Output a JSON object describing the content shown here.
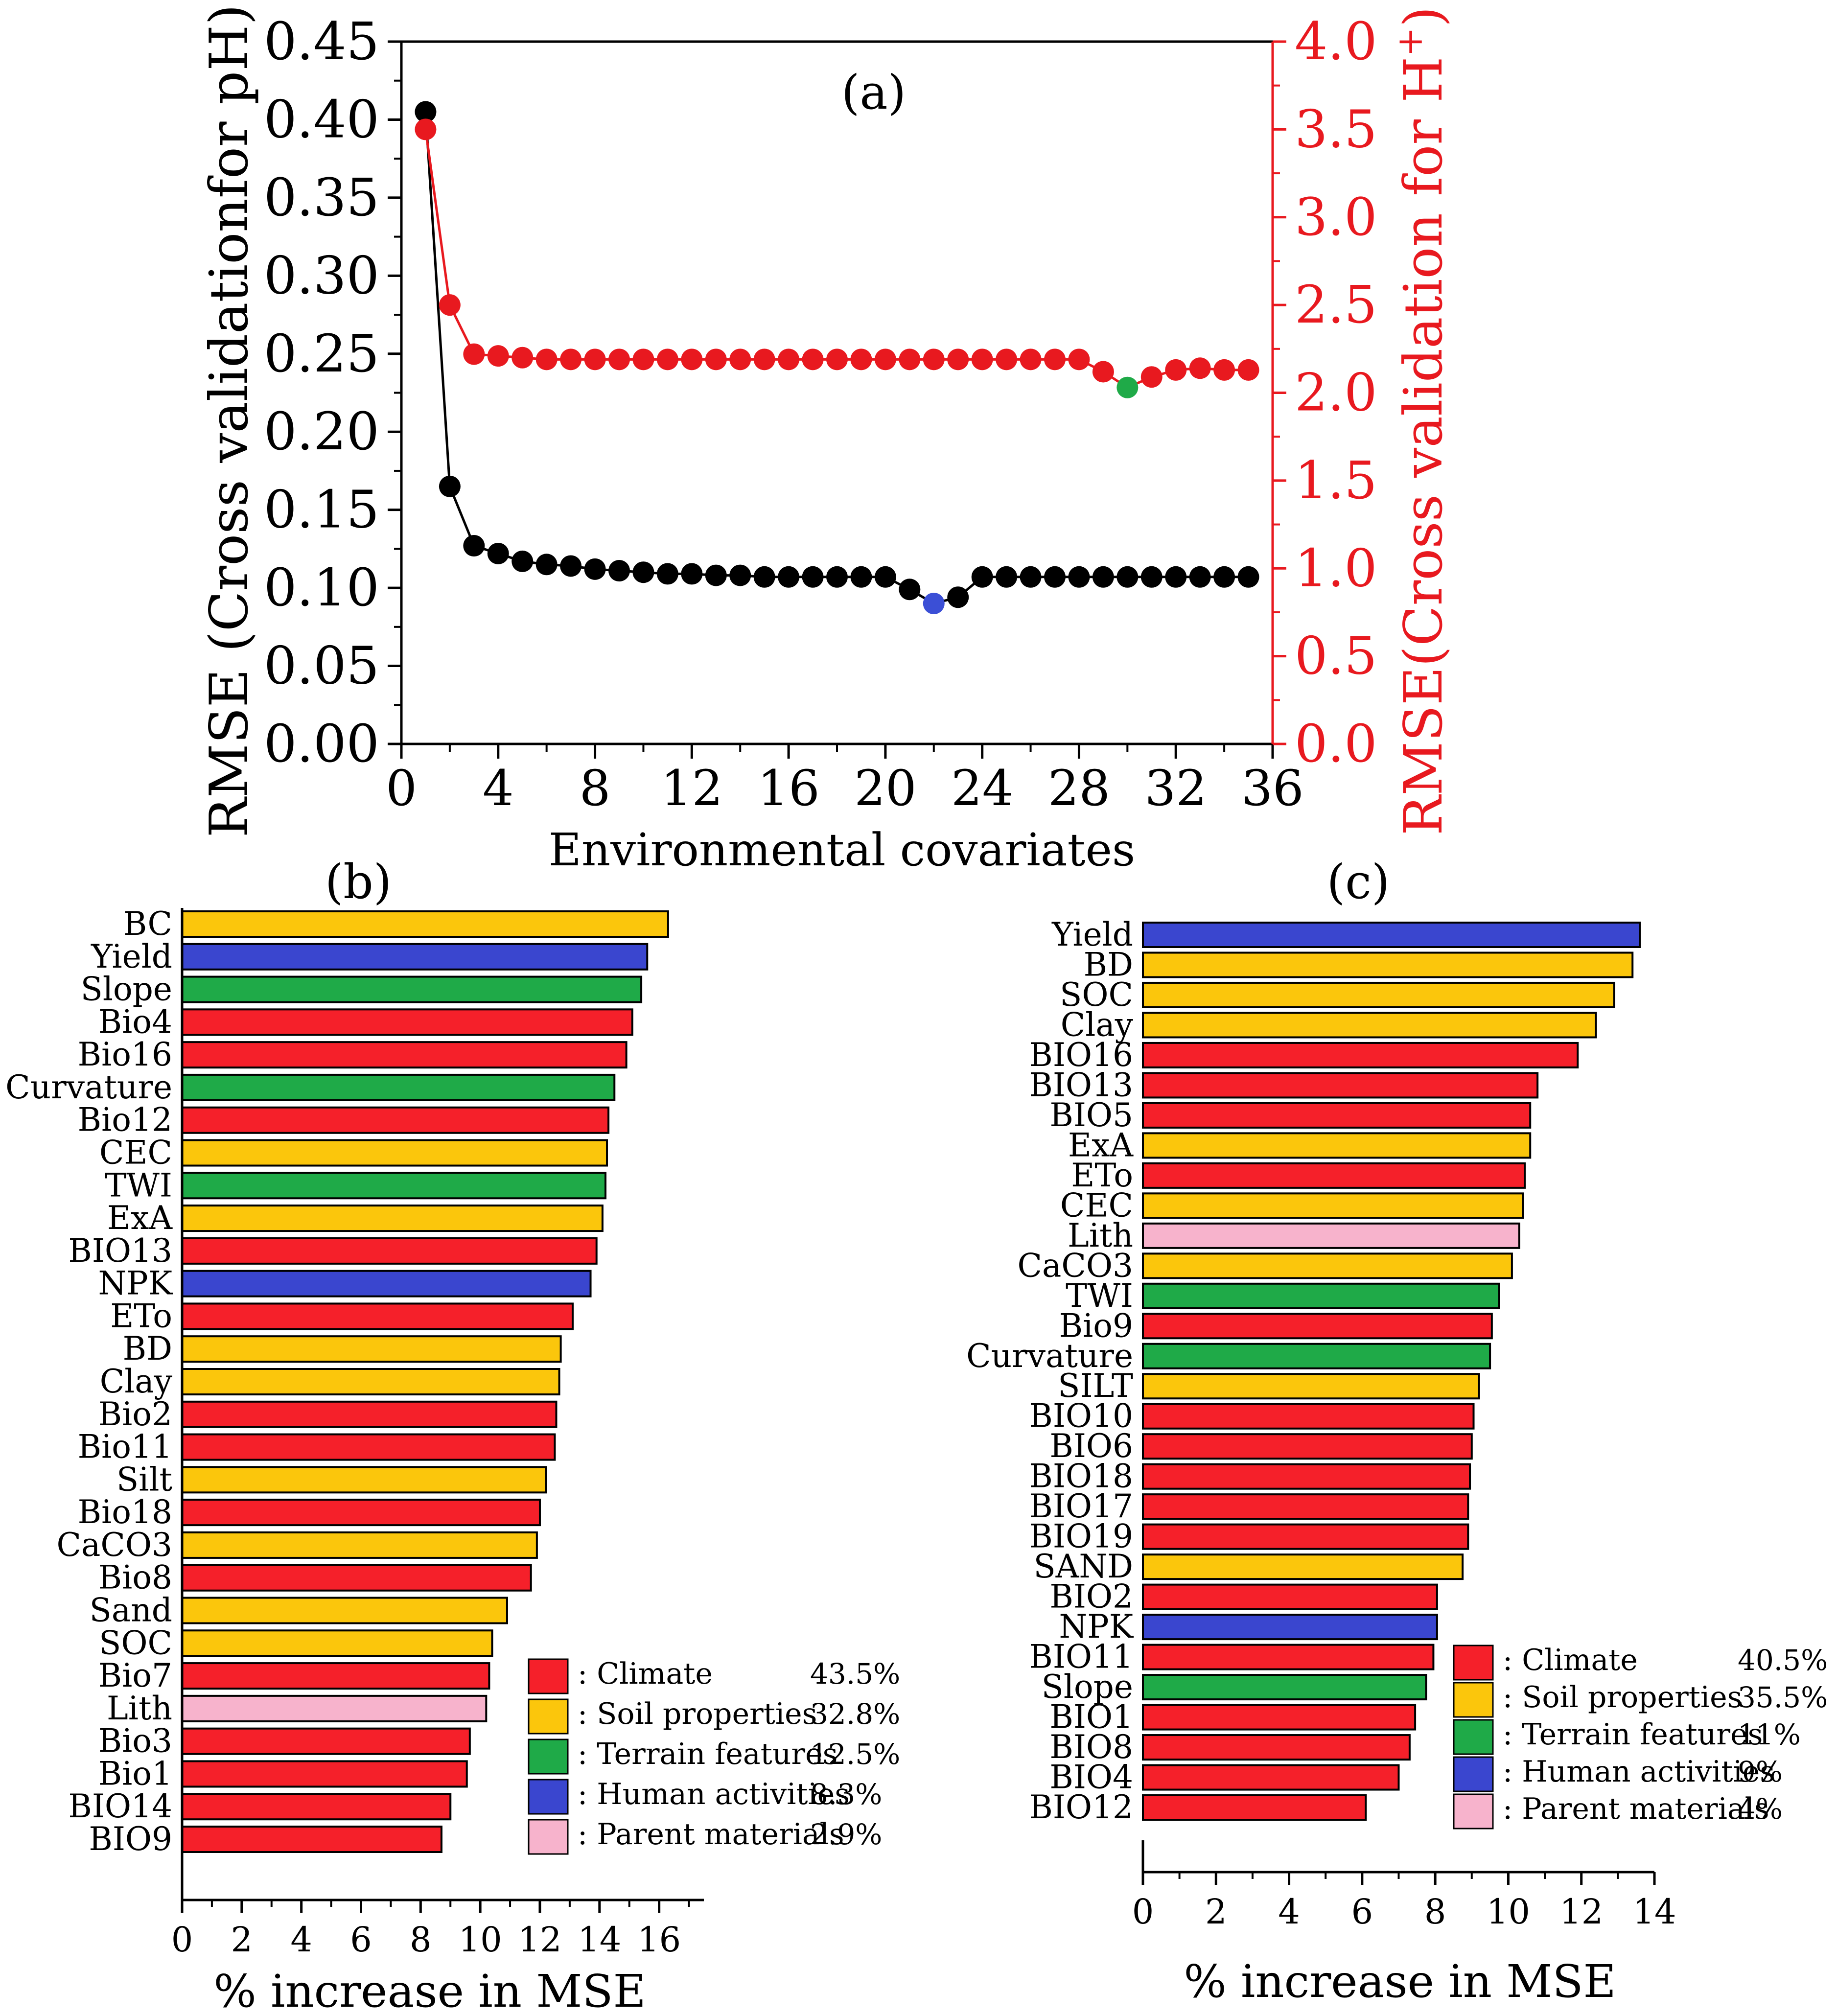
{
  "chart_data": [
    {
      "type": "scatter",
      "panel_label": "(a)",
      "xlabel": "Environmental covariates",
      "xlim": [
        0,
        36
      ],
      "x_ticks": [
        0,
        4,
        8,
        12,
        16,
        20,
        24,
        28,
        32,
        36
      ],
      "x_tick_labels": [
        "0",
        "4",
        "8",
        "12",
        "16",
        "20",
        "24",
        "28",
        "32",
        "36"
      ],
      "ylabel_left": "RMSE (Cross validationfor pH)",
      "ylim_left": [
        0,
        0.45
      ],
      "y_ticks_left": [
        0,
        0.05,
        0.1,
        0.15,
        0.2,
        0.25,
        0.3,
        0.35,
        0.4,
        0.45
      ],
      "y_tick_labels_left": [
        "0.00",
        "0.05",
        "0.10",
        "0.15",
        "0.20",
        "0.25",
        "0.30",
        "0.35",
        "0.40",
        "0.45"
      ],
      "ylabel_right_main": "RMSE(Cross validation for H",
      "ylabel_right_sup": "+",
      "ylabel_right_close": ")",
      "ylim_right": [
        0,
        4.0
      ],
      "y_ticks_right": [
        0,
        0.5,
        1.0,
        1.5,
        2.0,
        2.5,
        3.0,
        3.5,
        4.0
      ],
      "y_tick_labels_right": [
        "0.0",
        "0.5",
        "1.0",
        "1.5",
        "2.0",
        "2.5",
        "3.0",
        "3.5",
        "4.0"
      ],
      "series": [
        {
          "name": "pH",
          "axis": "left",
          "color": "#000000",
          "highlight_color": "#3b4fd6",
          "highlight_index": 21,
          "x": [
            1,
            2,
            3,
            4,
            5,
            6,
            7,
            8,
            9,
            10,
            11,
            12,
            13,
            14,
            15,
            16,
            17,
            18,
            19,
            20,
            21,
            22,
            23,
            24,
            25,
            26,
            27,
            28,
            29,
            30,
            31,
            32,
            33,
            34,
            35
          ],
          "values": [
            0.405,
            0.165,
            0.127,
            0.122,
            0.117,
            0.115,
            0.114,
            0.112,
            0.111,
            0.11,
            0.109,
            0.109,
            0.108,
            0.108,
            0.107,
            0.107,
            0.107,
            0.107,
            0.107,
            0.107,
            0.099,
            0.09,
            0.094,
            0.107,
            0.107,
            0.107,
            0.107,
            0.107,
            0.107,
            0.107,
            0.107,
            0.107,
            0.107,
            0.107,
            0.107
          ]
        },
        {
          "name": "H+",
          "axis": "right",
          "color": "#e8191f",
          "highlight_color": "#1faa48",
          "highlight_index": 29,
          "x": [
            1,
            2,
            3,
            4,
            5,
            6,
            7,
            8,
            9,
            10,
            11,
            12,
            13,
            14,
            15,
            16,
            17,
            18,
            19,
            20,
            21,
            22,
            23,
            24,
            25,
            26,
            27,
            28,
            29,
            30,
            31,
            32,
            33,
            34,
            35
          ],
          "values": [
            3.5,
            2.5,
            2.22,
            2.21,
            2.2,
            2.19,
            2.19,
            2.19,
            2.19,
            2.19,
            2.19,
            2.19,
            2.19,
            2.19,
            2.19,
            2.19,
            2.19,
            2.19,
            2.19,
            2.19,
            2.19,
            2.19,
            2.19,
            2.19,
            2.19,
            2.19,
            2.19,
            2.19,
            2.12,
            2.03,
            2.09,
            2.13,
            2.14,
            2.13,
            2.13
          ]
        }
      ]
    },
    {
      "type": "bar",
      "orientation": "horizontal",
      "panel_label": "(b)",
      "xlabel": "% increase in MSE",
      "xlim": [
        0,
        17.5
      ],
      "x_ticks": [
        0,
        2,
        4,
        6,
        8,
        10,
        12,
        14,
        16
      ],
      "x_tick_labels": [
        "0",
        "2",
        "4",
        "6",
        "8",
        "10",
        "12",
        "14",
        "16"
      ],
      "categories": [
        "BC",
        "Yield",
        "Slope",
        "Bio4",
        "Bio16",
        "Curvature",
        "Bio12",
        "CEC",
        "TWI",
        "ExA",
        "BIO13",
        "NPK",
        "ETo",
        "BD",
        "Clay",
        "Bio2",
        "Bio11",
        "Silt",
        "Bio18",
        "CaCO3",
        "Bio8",
        "Sand",
        "SOC",
        "Bio7",
        "Lith",
        "Bio3",
        "Bio1",
        "BIO14",
        "BIO9"
      ],
      "values": [
        16.3,
        15.6,
        15.4,
        15.1,
        14.9,
        14.5,
        14.3,
        14.25,
        14.2,
        14.1,
        13.9,
        13.7,
        13.1,
        12.7,
        12.65,
        12.55,
        12.5,
        12.2,
        12.0,
        11.9,
        11.7,
        10.9,
        10.4,
        10.3,
        10.2,
        9.65,
        9.55,
        9.0,
        8.7
      ],
      "groups": [
        "soil",
        "human",
        "terrain",
        "climate",
        "climate",
        "terrain",
        "climate",
        "soil",
        "terrain",
        "soil",
        "climate",
        "human",
        "climate",
        "soil",
        "soil",
        "climate",
        "climate",
        "soil",
        "climate",
        "soil",
        "climate",
        "soil",
        "soil",
        "climate",
        "parent",
        "climate",
        "climate",
        "climate",
        "climate"
      ],
      "legend": [
        {
          "key": "climate",
          "label": ": Climate",
          "pct": "43.5%"
        },
        {
          "key": "soil",
          "label": ": Soil properties",
          "pct": "32.8%"
        },
        {
          "key": "terrain",
          "label": ": Terrain features",
          "pct": "12.5%"
        },
        {
          "key": "human",
          "label": ": Human activities",
          "pct": "8.3%"
        },
        {
          "key": "parent",
          "label": ": Parent materials",
          "pct": "2.9%"
        }
      ]
    },
    {
      "type": "bar",
      "orientation": "horizontal",
      "panel_label": "(c)",
      "xlabel": "% increase in MSE",
      "xlim": [
        0,
        14
      ],
      "x_ticks": [
        0,
        2,
        4,
        6,
        8,
        10,
        12,
        14
      ],
      "x_tick_labels": [
        "0",
        "2",
        "4",
        "6",
        "8",
        "10",
        "12",
        "14"
      ],
      "categories": [
        "Yield",
        "BD",
        "SOC",
        "Clay",
        "BIO16",
        "BIO13",
        "BIO5",
        "ExA",
        "ETo",
        "CEC",
        "Lith",
        "CaCO3",
        "TWI",
        "Bio9",
        "Curvature",
        "SILT",
        "BIO10",
        "BIO6",
        "BIO18",
        "BIO17",
        "BIO19",
        "SAND",
        "BIO2",
        "NPK",
        "BIO11",
        "Slope",
        "BIO1",
        "BIO8",
        "BIO4",
        "BIO12"
      ],
      "values": [
        13.6,
        13.4,
        12.9,
        12.4,
        11.9,
        10.8,
        10.6,
        10.6,
        10.45,
        10.4,
        10.3,
        10.1,
        9.75,
        9.55,
        9.5,
        9.2,
        9.05,
        9.0,
        8.95,
        8.9,
        8.9,
        8.75,
        8.05,
        8.05,
        7.95,
        7.75,
        7.45,
        7.3,
        7.0,
        6.1
      ],
      "groups": [
        "human",
        "soil",
        "soil",
        "soil",
        "climate",
        "climate",
        "climate",
        "soil",
        "climate",
        "soil",
        "parent",
        "soil",
        "terrain",
        "climate",
        "terrain",
        "soil",
        "climate",
        "climate",
        "climate",
        "climate",
        "climate",
        "soil",
        "climate",
        "human",
        "climate",
        "terrain",
        "climate",
        "climate",
        "climate",
        "climate"
      ],
      "legend": [
        {
          "key": "climate",
          "label": ": Climate",
          "pct": "40.5%"
        },
        {
          "key": "soil",
          "label": ": Soil properties",
          "pct": "35.5%"
        },
        {
          "key": "terrain",
          "label": ": Terrain features",
          "pct": "11%"
        },
        {
          "key": "human",
          "label": ": Human activities",
          "pct": "9%"
        },
        {
          "key": "parent",
          "label": ": Parent materials",
          "pct": "4%"
        }
      ]
    }
  ],
  "group_colors": {
    "climate": "#f5202a",
    "soil": "#fbc60c",
    "terrain": "#1faa48",
    "human": "#3a46cf",
    "parent": "#f7b3cc"
  }
}
